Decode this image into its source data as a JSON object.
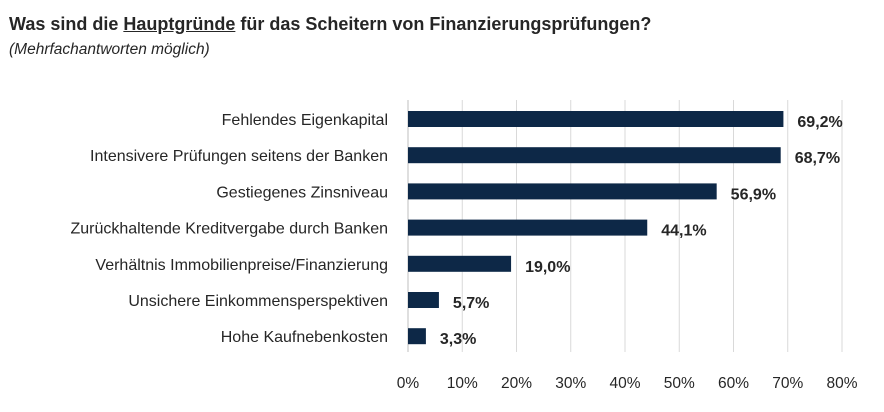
{
  "header": {
    "title_before": "Was sind die ",
    "title_emph": "Hauptgründe",
    "title_after": " für das Scheitern von Finanzierungsprüfungen?",
    "subtitle": "(Mehrfachantworten möglich)"
  },
  "chart_data": {
    "type": "bar",
    "orientation": "horizontal",
    "title": "Was sind die Hauptgründe für das Scheitern von Finanzierungsprüfungen?",
    "subtitle": "(Mehrfachantworten möglich)",
    "categories": [
      "Fehlendes Eigenkapital",
      "Intensivere Prüfungen seitens der Banken",
      "Gestiegenes Zinsniveau",
      "Zurückhaltende Kreditvergabe durch Banken",
      "Verhältnis Immobilienpreise/Finanzierung",
      "Unsichere Einkommensperspektiven",
      "Hohe Kaufnebenkosten"
    ],
    "values": [
      69.2,
      68.7,
      56.9,
      44.1,
      19.0,
      5.7,
      3.3
    ],
    "value_labels": [
      "69,2%",
      "68,7%",
      "56,9%",
      "44,1%",
      "19,0%",
      "5,7%",
      "3,3%"
    ],
    "xlim": [
      0,
      80
    ],
    "xticks": [
      "0%",
      "10%",
      "20%",
      "30%",
      "40%",
      "50%",
      "60%",
      "70%",
      "80%"
    ],
    "grid": true,
    "bar_color": "#0d2847",
    "grid_color": "#d9d9d9"
  }
}
